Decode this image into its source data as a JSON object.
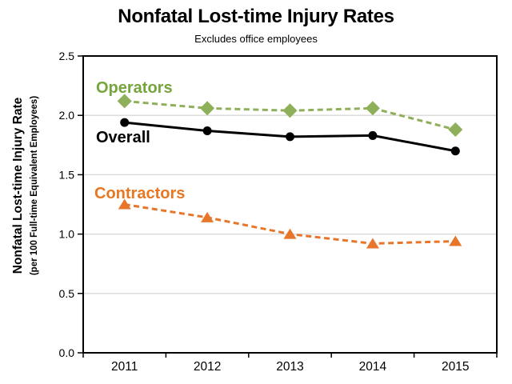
{
  "chart_data": {
    "type": "line",
    "title": "Nonfatal Lost-time Injury Rates",
    "subtitle": "Excludes office employees",
    "ylabel_line1": "Nonfatal Lost-time Injury Rate",
    "ylabel_line2": "(per 100 Full-time Equivalent Employees)",
    "xlabel": "",
    "categories": [
      "2011",
      "2012",
      "2013",
      "2014",
      "2015"
    ],
    "y_tick_labels": [
      "0.0",
      "0.5",
      "1.0",
      "1.5",
      "2.0",
      "2.5"
    ],
    "ylim": [
      0,
      2.5
    ],
    "y_step": 0.5,
    "grid": "horizontal-light-gray",
    "legend": "inline-series-labels",
    "series": [
      {
        "name": "Operators",
        "values": [
          2.12,
          2.06,
          2.04,
          2.06,
          1.88
        ],
        "color": "#8FB05A",
        "label_color": "#76A53C",
        "marker": "diamond",
        "line_style": "dashed"
      },
      {
        "name": "Overall",
        "values": [
          1.94,
          1.87,
          1.82,
          1.83,
          1.7
        ],
        "color": "#000000",
        "label_color": "#000000",
        "marker": "circle",
        "line_style": "solid"
      },
      {
        "name": "Contractors",
        "values": [
          1.25,
          1.14,
          1.0,
          0.92,
          0.94
        ],
        "color": "#E8762A",
        "label_color": "#E87722",
        "marker": "triangle",
        "line_style": "dashed"
      }
    ],
    "colors": {
      "axis": "#000000",
      "gridline": "#D8D8D8",
      "background": "#FFFFFF"
    }
  }
}
